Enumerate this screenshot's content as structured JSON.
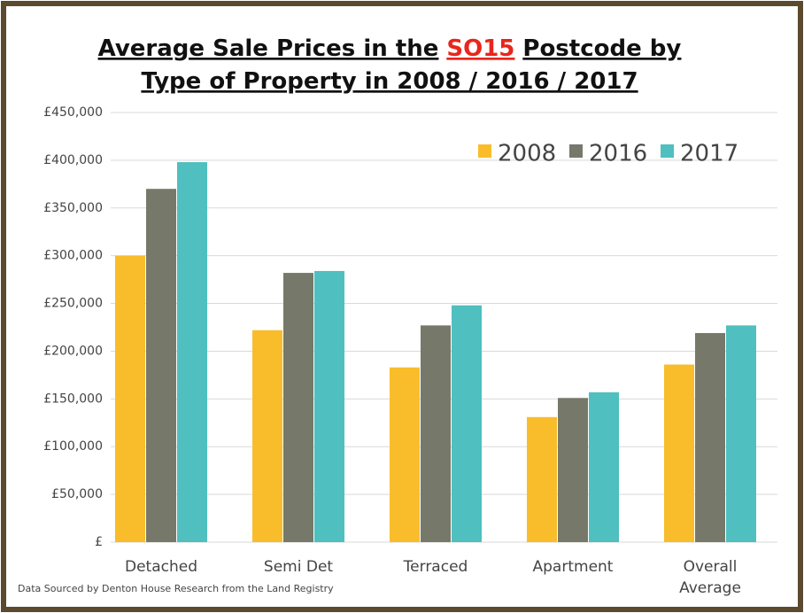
{
  "chart_data": {
    "type": "bar",
    "title": [
      [
        "Average Sale Prices in the",
        "SO15",
        "Postcode by"
      ],
      [
        "Type of Property in 2008 / 2016 / 2017"
      ]
    ],
    "title_highlight_color": "#e8261c",
    "categories": [
      "Detached",
      "Semi Det",
      "Terraced",
      "Apartment",
      "Overall Average"
    ],
    "series": [
      {
        "name": "2008",
        "color": "#f9bd2b",
        "values": [
          300000,
          222000,
          183000,
          131000,
          186000
        ]
      },
      {
        "name": "2016",
        "color": "#76796a",
        "values": [
          370000,
          282000,
          227000,
          151000,
          219000
        ]
      },
      {
        "name": "2017",
        "color": "#4fbfc0",
        "values": [
          398000,
          284000,
          248000,
          157000,
          227000
        ]
      }
    ],
    "ylim": [
      0,
      450000
    ],
    "yticks": [
      {
        "value": 0,
        "label": "£"
      },
      {
        "value": 50000,
        "label": "£50,000"
      },
      {
        "value": 100000,
        "label": "£100,000"
      },
      {
        "value": 150000,
        "label": "£150,000"
      },
      {
        "value": 200000,
        "label": "£200,000"
      },
      {
        "value": 250000,
        "label": "£250,000"
      },
      {
        "value": 300000,
        "label": "£300,000"
      },
      {
        "value": 350000,
        "label": "£350,000"
      },
      {
        "value": 400000,
        "label": "£400,000"
      },
      {
        "value": 450000,
        "label": "£450,000"
      }
    ],
    "grid": true,
    "legend": "top-right",
    "footnote": "Data Sourced by Denton House Research from the Land Registry"
  }
}
